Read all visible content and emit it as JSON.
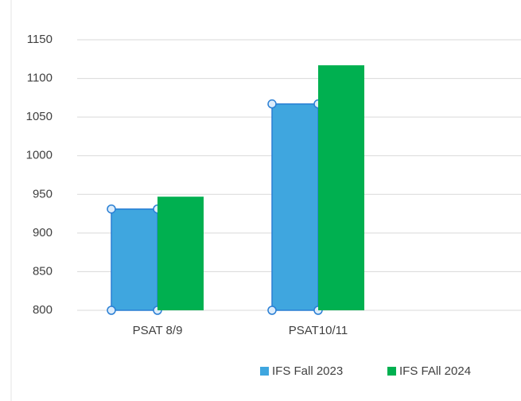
{
  "chart_data": {
    "type": "bar",
    "categories": [
      "PSAT 8/9",
      "PSAT10/11"
    ],
    "series": [
      {
        "name": "IFS Fall 2023",
        "color": "#3fa6df",
        "values": [
          931,
          1067
        ]
      },
      {
        "name": "IFS FAll 2024",
        "color": "#00b050",
        "values": [
          947,
          1117
        ]
      }
    ],
    "ylim": [
      800,
      1150
    ],
    "yticks": [
      800,
      850,
      900,
      950,
      1000,
      1050,
      1100,
      1150
    ],
    "grid": true,
    "legend": "bottom"
  }
}
